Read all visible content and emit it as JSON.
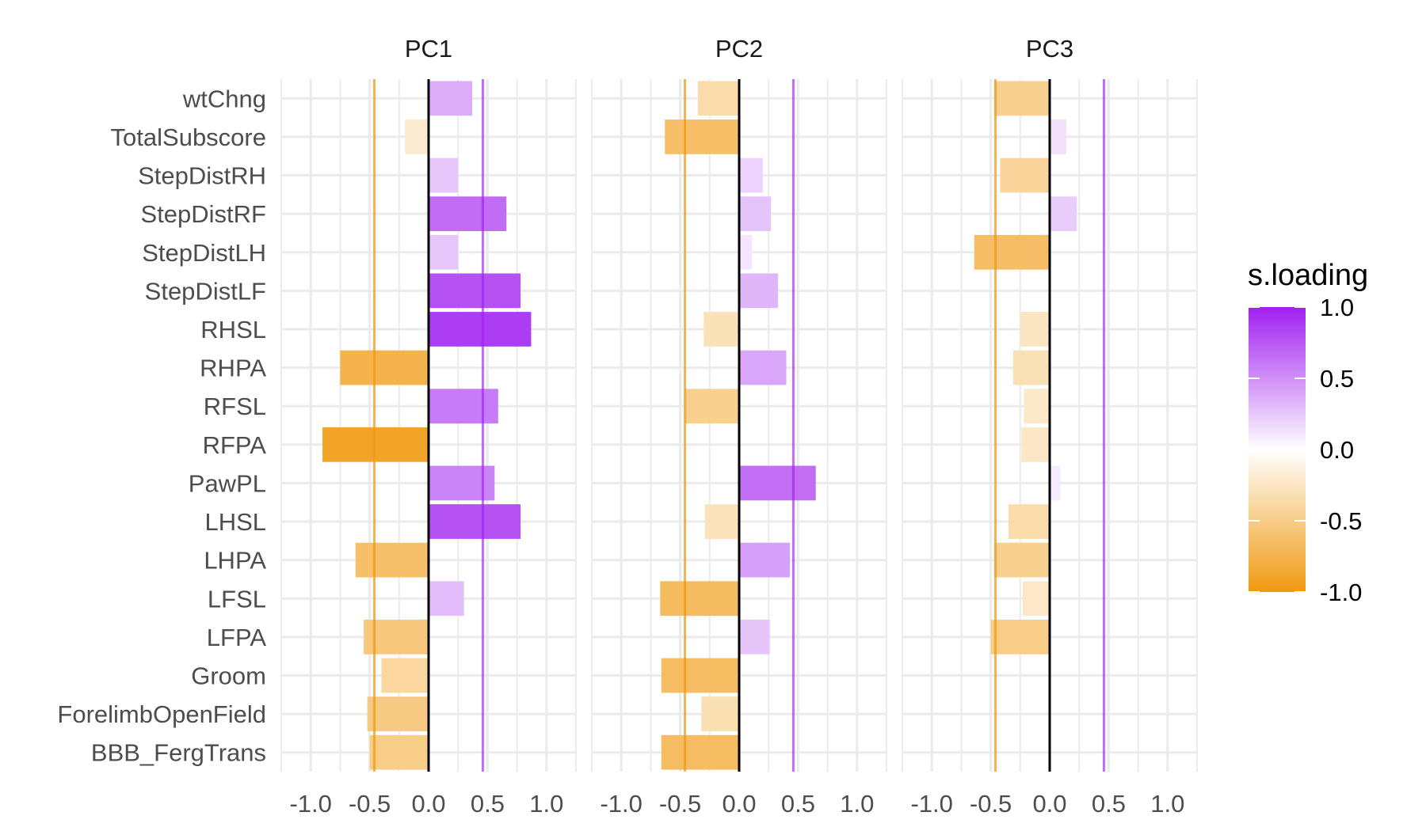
{
  "chart_data": {
    "type": "bar",
    "orientation": "horizontal",
    "facets": [
      "PC1",
      "PC2",
      "PC3"
    ],
    "categories": [
      "wtChng",
      "TotalSubscore",
      "StepDistRH",
      "StepDistRF",
      "StepDistLH",
      "StepDistLF",
      "RHSL",
      "RHPA",
      "RFSL",
      "RFPA",
      "PawPL",
      "LHSL",
      "LHPA",
      "LFSL",
      "LFPA",
      "Groom",
      "ForelimbOpenField",
      "BBB_FergTrans"
    ],
    "series": [
      {
        "name": "PC1",
        "values": [
          0.37,
          -0.2,
          0.25,
          0.66,
          0.25,
          0.78,
          0.87,
          -0.75,
          0.59,
          -0.9,
          0.56,
          0.78,
          -0.62,
          0.3,
          -0.55,
          -0.4,
          -0.52,
          -0.5
        ]
      },
      {
        "name": "PC2",
        "values": [
          -0.35,
          -0.63,
          0.2,
          0.27,
          0.11,
          0.33,
          -0.3,
          0.4,
          -0.46,
          0.0,
          0.65,
          -0.29,
          0.43,
          -0.67,
          0.26,
          -0.66,
          -0.32,
          -0.66
        ]
      },
      {
        "name": "PC3",
        "values": [
          -0.47,
          0.14,
          -0.42,
          0.23,
          -0.64,
          0.0,
          -0.25,
          -0.31,
          -0.22,
          -0.24,
          0.09,
          -0.35,
          -0.47,
          -0.23,
          -0.5,
          0.0,
          0.0,
          0.0
        ]
      }
    ],
    "thresholds": {
      "negative": -0.46,
      "positive": 0.46
    },
    "xlim": [
      -1.25,
      1.25
    ],
    "x_ticks": [
      "-1.0",
      "-0.5",
      "0.0",
      "0.5",
      "1.0"
    ],
    "legend": {
      "title": "s.loading",
      "position": "right",
      "labels": [
        "1.0",
        "0.5",
        "0.0",
        "-0.5",
        "-1.0"
      ],
      "range": [
        -1,
        1
      ]
    },
    "colors": {
      "positive": "#a020f0",
      "negative": "#f09a10",
      "mid": "#ffffff",
      "grid": "#ebebeb",
      "zero_line": "#000000"
    },
    "grid": true
  }
}
